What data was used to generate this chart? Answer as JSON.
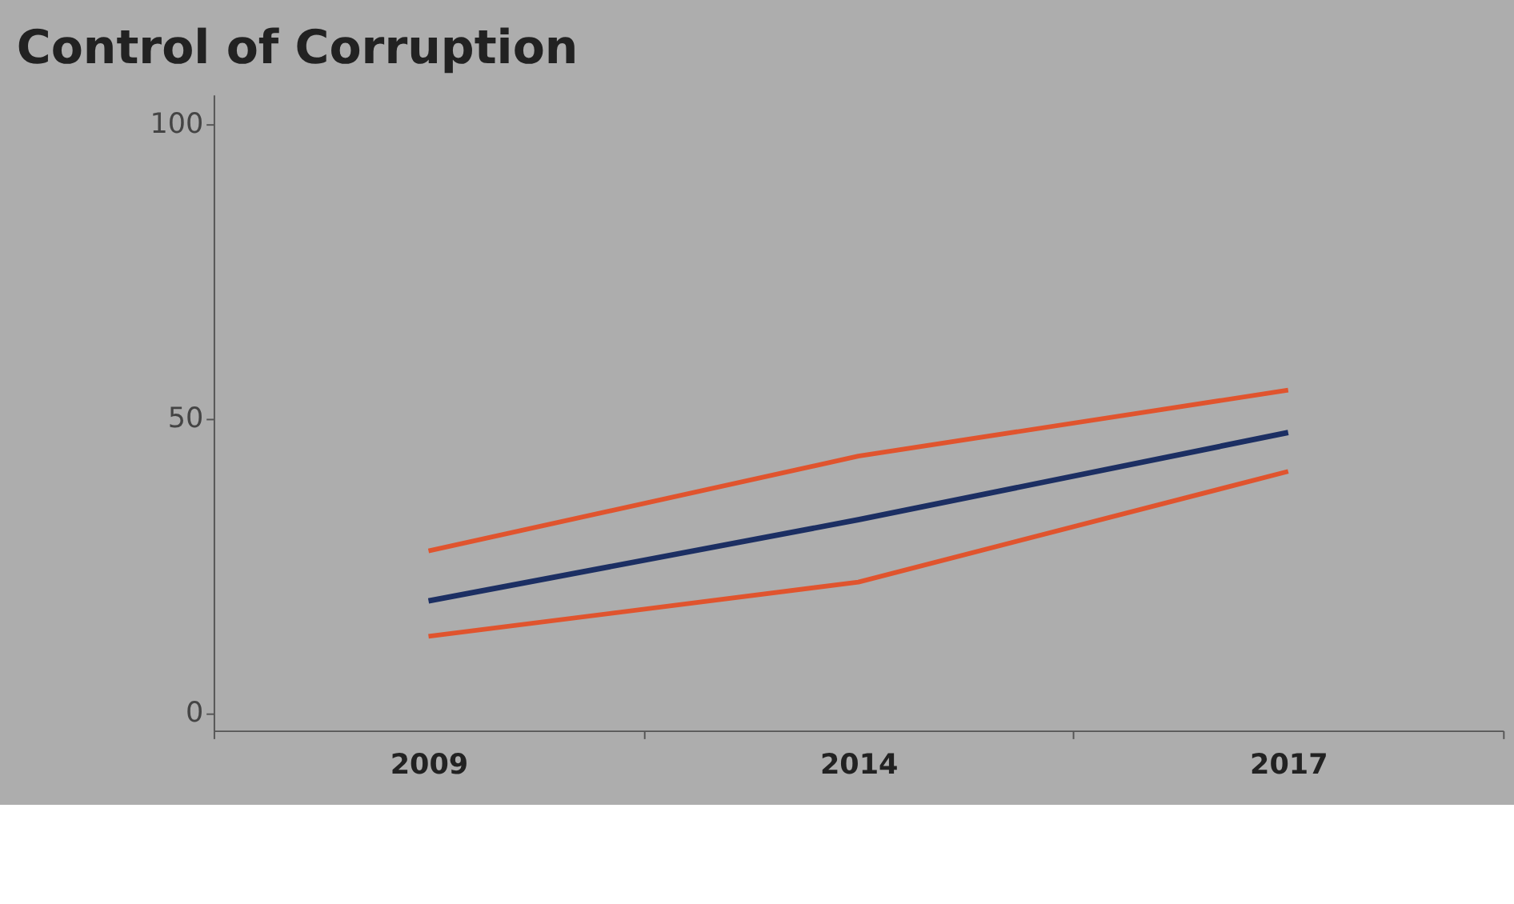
{
  "chart_data": {
    "type": "line",
    "title": "Control of Corruption",
    "categories": [
      "2009",
      "2014",
      "2017"
    ],
    "series": [
      {
        "color": "#e0542e",
        "values": [
          27.5,
          43.6,
          54.8
        ]
      },
      {
        "color": "#1c2f63",
        "values": [
          19,
          32.8,
          47.6
        ]
      },
      {
        "color": "#e0542e",
        "values": [
          13,
          22.2,
          41
        ]
      }
    ],
    "ylim": [
      -3,
      105
    ],
    "yticks": [
      0,
      50,
      100
    ],
    "grid": false,
    "marker": "none",
    "line_style": "solid"
  }
}
